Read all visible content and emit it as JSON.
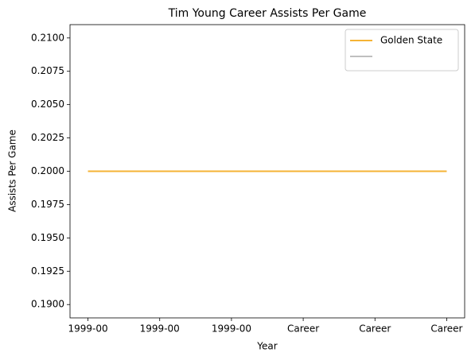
{
  "chart_data": {
    "type": "line",
    "title": "Tim Young  Career Assists Per Game",
    "xlabel": "Year",
    "ylabel": "Assists Per Game",
    "categories": [
      "1999-00",
      "1999-00",
      "1999-00",
      "Career",
      "Career",
      "Career"
    ],
    "series": [
      {
        "name": "Golden State",
        "color": "#f5b335",
        "values": [
          0.2,
          0.2,
          0.2,
          0.2,
          0.2,
          0.2
        ]
      },
      {
        "color": "#bfbfbf",
        "values": [
          null,
          null,
          null,
          null,
          null,
          null
        ]
      }
    ],
    "ylim": [
      0.189,
      0.211
    ],
    "yticks": [
      {
        "value": 0.19,
        "label": "0.1900"
      },
      {
        "value": 0.1925,
        "label": "0.1925"
      },
      {
        "value": 0.195,
        "label": "0.1950"
      },
      {
        "value": 0.1975,
        "label": "0.1975"
      },
      {
        "value": 0.2,
        "label": "0.2000"
      },
      {
        "value": 0.2025,
        "label": "0.2025"
      },
      {
        "value": 0.205,
        "label": "0.2050"
      },
      {
        "value": 0.2075,
        "label": "0.2075"
      },
      {
        "value": 0.21,
        "label": "0.2100"
      }
    ],
    "grid": false,
    "legend": "upper right"
  }
}
